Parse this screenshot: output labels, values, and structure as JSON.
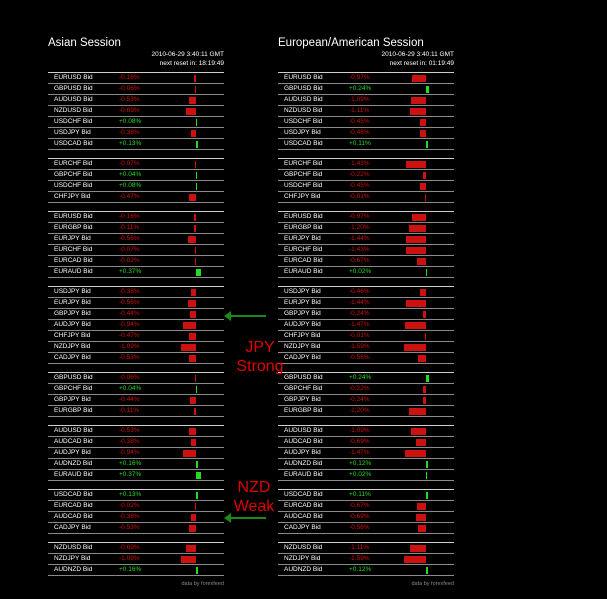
{
  "colors": {
    "negative": "#cc1111",
    "positive": "#22dd22"
  },
  "asian": {
    "title": "Asian Session",
    "timestamp": "2010-06-29 3:40:11 GMT",
    "next_reset": "next reset in: 18:19:49",
    "credit": "data by forexfeed",
    "groups": [
      [
        {
          "pair": "EURUSD Bid",
          "change": -0.16
        },
        {
          "pair": "GBPUSD Bid",
          "change": -0.06
        },
        {
          "pair": "AUDUSD Bid",
          "change": -0.53
        },
        {
          "pair": "NZDUSD Bid",
          "change": -0.69
        },
        {
          "pair": "USDCHF Bid",
          "change": 0.08
        },
        {
          "pair": "USDJPY Bid",
          "change": -0.38
        },
        {
          "pair": "USDCAD Bid",
          "change": 0.13
        }
      ],
      [
        {
          "pair": "EURCHF Bid",
          "change": -0.07
        },
        {
          "pair": "GBPCHF Bid",
          "change": 0.04
        },
        {
          "pair": "USDCHF Bid",
          "change": 0.08
        },
        {
          "pair": "CHFJPY Bid",
          "change": -0.47
        }
      ],
      [
        {
          "pair": "EURUSD Bid",
          "change": -0.16
        },
        {
          "pair": "EURGBP Bid",
          "change": -0.11
        },
        {
          "pair": "EURJPY Bid",
          "change": -0.56
        },
        {
          "pair": "EURCHF Bid",
          "change": -0.07
        },
        {
          "pair": "EURCAD Bid",
          "change": -0.02
        },
        {
          "pair": "EURAUD Bid",
          "change": 0.37
        }
      ],
      [
        {
          "pair": "USDJPY Bid",
          "change": -0.38
        },
        {
          "pair": "EURJPY Bid",
          "change": -0.56
        },
        {
          "pair": "GBPJPY Bid",
          "change": -0.44
        },
        {
          "pair": "AUDJPY Bid",
          "change": -0.94
        },
        {
          "pair": "CHFJPY Bid",
          "change": -0.47
        },
        {
          "pair": "NZDJPY Bid",
          "change": -1.09
        },
        {
          "pair": "CADJPY Bid",
          "change": -0.53
        }
      ],
      [
        {
          "pair": "GBPUSD Bid",
          "change": -0.06
        },
        {
          "pair": "GBPCHF Bid",
          "change": 0.04
        },
        {
          "pair": "GBPJPY Bid",
          "change": -0.44
        },
        {
          "pair": "EURGBP Bid",
          "change": -0.11
        }
      ],
      [
        {
          "pair": "AUDUSD Bid",
          "change": -0.53
        },
        {
          "pair": "AUDCAD Bid",
          "change": -0.38
        },
        {
          "pair": "AUDJPY Bid",
          "change": -0.94
        },
        {
          "pair": "AUDNZD Bid",
          "change": 0.16
        },
        {
          "pair": "EURAUD Bid",
          "change": 0.37
        }
      ],
      [
        {
          "pair": "USDCAD Bid",
          "change": 0.13
        },
        {
          "pair": "EURCAD Bid",
          "change": -0.02
        },
        {
          "pair": "AUDCAD Bid",
          "change": -0.38
        },
        {
          "pair": "CADJPY Bid",
          "change": -0.53
        }
      ],
      [
        {
          "pair": "NZDUSD Bid",
          "change": -0.69
        },
        {
          "pair": "NZDJPY Bid",
          "change": -1.09
        },
        {
          "pair": "AUDNZD Bid",
          "change": 0.16
        }
      ]
    ]
  },
  "euro": {
    "title": "European/American Session",
    "timestamp": "2010-06-29 3:40:11 GMT",
    "next_reset": "next reset in: 01:19:49",
    "credit": "data by forexfeed",
    "groups": [
      [
        {
          "pair": "EURUSD Bid",
          "change": -0.97
        },
        {
          "pair": "GBPUSD Bid",
          "change": 0.24
        },
        {
          "pair": "AUDUSD Bid",
          "change": -1.09
        },
        {
          "pair": "NZDUSD Bid",
          "change": -1.11
        },
        {
          "pair": "USDCHF Bid",
          "change": -0.45
        },
        {
          "pair": "USDJPY Bid",
          "change": -0.46
        },
        {
          "pair": "USDCAD Bid",
          "change": 0.11
        }
      ],
      [
        {
          "pair": "EURCHF Bid",
          "change": -1.43
        },
        {
          "pair": "GBPCHF Bid",
          "change": -0.22
        },
        {
          "pair": "USDCHF Bid",
          "change": -0.45
        },
        {
          "pair": "CHFJPY Bid",
          "change": -0.01
        }
      ],
      [
        {
          "pair": "EURUSD Bid",
          "change": -0.97
        },
        {
          "pair": "EURGBP Bid",
          "change": -1.2
        },
        {
          "pair": "EURJPY Bid",
          "change": -1.44
        },
        {
          "pair": "EURCHF Bid",
          "change": -1.43
        },
        {
          "pair": "EURCAD Bid",
          "change": -0.67
        },
        {
          "pair": "EURAUD Bid",
          "change": 0.02
        }
      ],
      [
        {
          "pair": "USDJPY Bid",
          "change": -0.46
        },
        {
          "pair": "EURJPY Bid",
          "change": -1.44
        },
        {
          "pair": "GBPJPY Bid",
          "change": -0.24
        },
        {
          "pair": "AUDJPY Bid",
          "change": -1.47
        },
        {
          "pair": "CHFJPY Bid",
          "change": -0.01
        },
        {
          "pair": "NZDJPY Bid",
          "change": -1.59
        },
        {
          "pair": "CADJPY Bid",
          "change": -0.56
        }
      ],
      [
        {
          "pair": "GBPUSD Bid",
          "change": 0.24
        },
        {
          "pair": "GBPCHF Bid",
          "change": -0.22
        },
        {
          "pair": "GBPJPY Bid",
          "change": -0.24
        },
        {
          "pair": "EURGBP Bid",
          "change": -1.2
        }
      ],
      [
        {
          "pair": "AUDUSD Bid",
          "change": -1.09
        },
        {
          "pair": "AUDCAD Bid",
          "change": -0.69
        },
        {
          "pair": "AUDJPY Bid",
          "change": -1.47
        },
        {
          "pair": "AUDNZD Bid",
          "change": 0.12
        },
        {
          "pair": "EURAUD Bid",
          "change": 0.02
        }
      ],
      [
        {
          "pair": "USDCAD Bid",
          "change": 0.11
        },
        {
          "pair": "EURCAD Bid",
          "change": -0.67
        },
        {
          "pair": "AUDCAD Bid",
          "change": -0.69
        },
        {
          "pair": "CADJPY Bid",
          "change": -0.56
        }
      ],
      [
        {
          "pair": "NZDUSD Bid",
          "change": -1.11
        },
        {
          "pair": "NZDJPY Bid",
          "change": -1.59
        },
        {
          "pair": "AUDNZD Bid",
          "change": 0.12
        }
      ]
    ]
  },
  "annotations": {
    "jpy": {
      "line1": "JPY",
      "line2": "Strong"
    },
    "nzd": {
      "line1": "NZD",
      "line2": "Weak"
    }
  }
}
